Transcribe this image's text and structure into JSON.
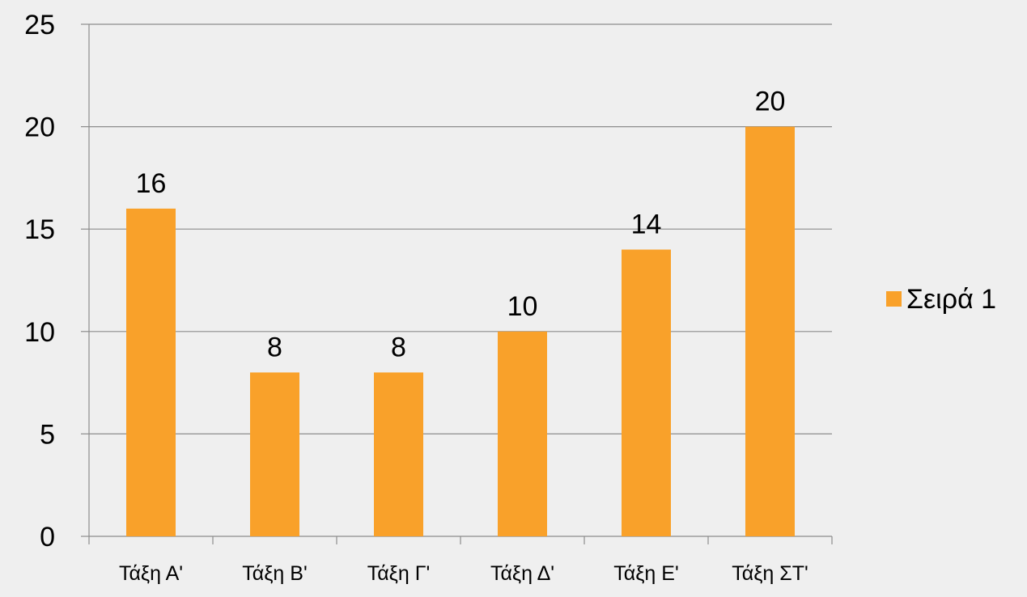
{
  "chart_data": {
    "type": "bar",
    "categories": [
      "Τάξη Α'",
      "Τάξη Β'",
      "Τάξη Γ'",
      "Τάξη Δ'",
      "Τάξη Ε'",
      "Τάξη ΣΤ'"
    ],
    "series": [
      {
        "name": "Σειρά 1",
        "values": [
          16,
          8,
          8,
          10,
          14,
          20
        ],
        "color": "#f9a12a"
      }
    ],
    "yticks": [
      "0",
      "5",
      "10",
      "15",
      "20",
      "25"
    ],
    "ylim": [
      0,
      25
    ],
    "grid": true,
    "legend_position": "right",
    "data_labels": true
  },
  "colors": {
    "background": "#efefef",
    "bar": "#f9a12a",
    "gridline": "#8c8c8c",
    "axis": "#8c8c8c"
  }
}
